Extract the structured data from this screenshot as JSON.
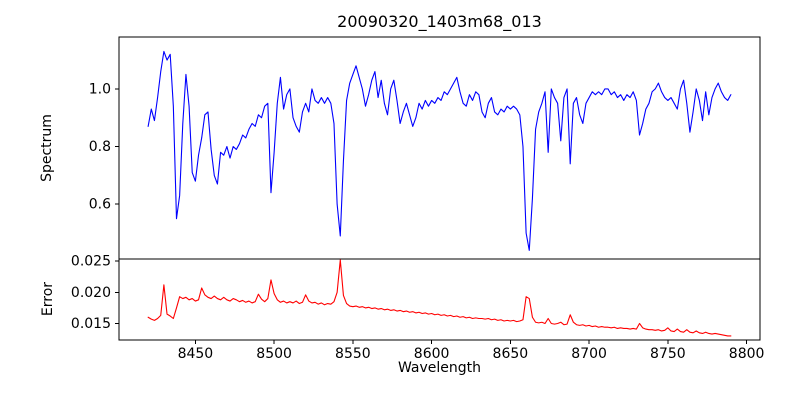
{
  "chart_data": {
    "type": "line",
    "title": "20090320_1403m68_013",
    "xlabel": "Wavelength",
    "xlim": [
      8401.5,
      8808.5
    ],
    "xticks": [
      8450,
      8500,
      8550,
      8600,
      8650,
      8700,
      8750,
      8800
    ],
    "xtick_labels": [
      "8450",
      "8500",
      "8550",
      "8600",
      "8650",
      "8700",
      "8750",
      "8800"
    ],
    "grid": false,
    "legend": "none",
    "x": [
      8420,
      8422,
      8424,
      8426,
      8428,
      8430,
      8432,
      8434,
      8436,
      8438,
      8440,
      8442,
      8444,
      8446,
      8448,
      8450,
      8452,
      8454,
      8456,
      8458,
      8460,
      8462,
      8464,
      8466,
      8468,
      8470,
      8472,
      8474,
      8476,
      8478,
      8480,
      8482,
      8484,
      8486,
      8488,
      8490,
      8492,
      8494,
      8496,
      8498,
      8500,
      8502,
      8504,
      8506,
      8508,
      8510,
      8512,
      8514,
      8516,
      8518,
      8520,
      8522,
      8524,
      8526,
      8528,
      8530,
      8532,
      8534,
      8536,
      8538,
      8540,
      8542,
      8544,
      8546,
      8548,
      8550,
      8552,
      8554,
      8556,
      8558,
      8560,
      8562,
      8564,
      8566,
      8568,
      8570,
      8572,
      8574,
      8576,
      8578,
      8580,
      8582,
      8584,
      8586,
      8588,
      8590,
      8592,
      8594,
      8596,
      8598,
      8600,
      8602,
      8604,
      8606,
      8608,
      8610,
      8612,
      8614,
      8616,
      8618,
      8620,
      8622,
      8624,
      8626,
      8628,
      8630,
      8632,
      8634,
      8636,
      8638,
      8640,
      8642,
      8644,
      8646,
      8648,
      8650,
      8652,
      8654,
      8656,
      8658,
      8660,
      8662,
      8664,
      8666,
      8668,
      8670,
      8672,
      8674,
      8676,
      8678,
      8680,
      8682,
      8684,
      8686,
      8688,
      8690,
      8692,
      8694,
      8696,
      8698,
      8700,
      8702,
      8704,
      8706,
      8708,
      8710,
      8712,
      8714,
      8716,
      8718,
      8720,
      8722,
      8724,
      8726,
      8728,
      8730,
      8732,
      8734,
      8736,
      8738,
      8740,
      8742,
      8744,
      8746,
      8748,
      8750,
      8752,
      8754,
      8756,
      8758,
      8760,
      8762,
      8764,
      8766,
      8768,
      8770,
      8772,
      8774,
      8776,
      8778,
      8780,
      8782,
      8784,
      8786,
      8788,
      8790
    ],
    "panels": [
      {
        "name": "spectrum",
        "ylabel": "Spectrum",
        "color": "#0000ff",
        "ylim": [
          0.41,
          1.18
        ],
        "yticks": [
          0.6,
          0.8,
          1.0
        ],
        "ytick_labels": [
          "0.6",
          "0.8",
          "1.0"
        ],
        "values": [
          0.87,
          0.93,
          0.89,
          0.97,
          1.06,
          1.13,
          1.1,
          1.12,
          0.94,
          0.55,
          0.63,
          0.88,
          1.05,
          0.94,
          0.71,
          0.68,
          0.77,
          0.83,
          0.91,
          0.92,
          0.79,
          0.7,
          0.67,
          0.78,
          0.77,
          0.8,
          0.76,
          0.8,
          0.79,
          0.81,
          0.84,
          0.83,
          0.86,
          0.88,
          0.87,
          0.91,
          0.9,
          0.94,
          0.95,
          0.64,
          0.78,
          0.95,
          1.04,
          0.93,
          0.98,
          1.0,
          0.9,
          0.87,
          0.85,
          0.92,
          0.95,
          0.92,
          1.0,
          0.96,
          0.95,
          0.97,
          0.95,
          0.97,
          0.95,
          0.88,
          0.6,
          0.49,
          0.75,
          0.96,
          1.02,
          1.05,
          1.08,
          1.04,
          1.0,
          0.94,
          0.98,
          1.03,
          1.06,
          0.97,
          1.03,
          0.95,
          0.91,
          1.0,
          1.03,
          0.96,
          0.88,
          0.92,
          0.95,
          0.91,
          0.87,
          0.9,
          0.95,
          0.93,
          0.96,
          0.94,
          0.96,
          0.95,
          0.97,
          0.96,
          0.99,
          0.98,
          1.0,
          1.02,
          1.04,
          0.99,
          0.95,
          0.94,
          0.98,
          0.96,
          0.99,
          0.98,
          0.92,
          0.9,
          0.95,
          0.97,
          0.92,
          0.91,
          0.93,
          0.92,
          0.94,
          0.93,
          0.94,
          0.93,
          0.91,
          0.8,
          0.5,
          0.44,
          0.62,
          0.86,
          0.92,
          0.95,
          0.99,
          0.78,
          1.0,
          0.97,
          0.95,
          0.82,
          0.97,
          1.0,
          0.74,
          0.95,
          0.97,
          0.91,
          0.88,
          0.95,
          0.97,
          0.99,
          0.98,
          0.99,
          0.98,
          1.0,
          1.0,
          0.98,
          0.99,
          0.97,
          0.98,
          0.96,
          0.98,
          0.97,
          0.99,
          0.96,
          0.84,
          0.88,
          0.93,
          0.95,
          0.99,
          1.0,
          1.02,
          0.99,
          0.97,
          0.96,
          0.97,
          0.95,
          0.93,
          1.0,
          1.03,
          0.95,
          0.85,
          0.92,
          1.0,
          0.96,
          0.89,
          0.99,
          0.91,
          0.97,
          1.0,
          1.02,
          0.99,
          0.97,
          0.96,
          0.98
        ]
      },
      {
        "name": "error",
        "ylabel": "Error",
        "color": "#ff0000",
        "ylim": [
          0.01235,
          0.02535
        ],
        "yticks": [
          0.015,
          0.02,
          0.025
        ],
        "ytick_labels": [
          "0.015",
          "0.020",
          "0.025"
        ],
        "values": [
          0.016,
          0.0157,
          0.0155,
          0.0158,
          0.0163,
          0.0212,
          0.0165,
          0.0162,
          0.0158,
          0.0175,
          0.0193,
          0.019,
          0.0192,
          0.0188,
          0.019,
          0.0186,
          0.0188,
          0.0207,
          0.0196,
          0.0192,
          0.019,
          0.0194,
          0.019,
          0.0188,
          0.0192,
          0.0188,
          0.0186,
          0.019,
          0.0188,
          0.0185,
          0.0187,
          0.0184,
          0.0186,
          0.0183,
          0.0185,
          0.0197,
          0.0189,
          0.0185,
          0.019,
          0.022,
          0.0198,
          0.0188,
          0.0184,
          0.0186,
          0.0183,
          0.0185,
          0.0183,
          0.0186,
          0.0182,
          0.0184,
          0.0196,
          0.0186,
          0.0183,
          0.0184,
          0.0181,
          0.0183,
          0.018,
          0.0182,
          0.0181,
          0.0185,
          0.02,
          0.0252,
          0.0195,
          0.0182,
          0.0178,
          0.0177,
          0.0178,
          0.0176,
          0.0177,
          0.0175,
          0.0176,
          0.0174,
          0.0175,
          0.0173,
          0.0174,
          0.0172,
          0.0173,
          0.0171,
          0.0172,
          0.017,
          0.0171,
          0.0169,
          0.017,
          0.0168,
          0.0169,
          0.0167,
          0.0168,
          0.0166,
          0.0167,
          0.0165,
          0.0166,
          0.0164,
          0.0165,
          0.0163,
          0.0164,
          0.0162,
          0.0163,
          0.0161,
          0.0162,
          0.016,
          0.0161,
          0.0159,
          0.016,
          0.0158,
          0.0159,
          0.0158,
          0.0158,
          0.0157,
          0.0158,
          0.0156,
          0.0157,
          0.0155,
          0.0156,
          0.0154,
          0.0155,
          0.0154,
          0.0155,
          0.0153,
          0.0154,
          0.0156,
          0.0193,
          0.019,
          0.016,
          0.0152,
          0.0151,
          0.0152,
          0.015,
          0.0158,
          0.015,
          0.0149,
          0.015,
          0.0152,
          0.0148,
          0.0149,
          0.0164,
          0.0152,
          0.0148,
          0.0147,
          0.0148,
          0.0146,
          0.0147,
          0.0145,
          0.0146,
          0.0144,
          0.0145,
          0.0144,
          0.0144,
          0.0143,
          0.0144,
          0.0142,
          0.0143,
          0.0142,
          0.0142,
          0.0141,
          0.0142,
          0.0141,
          0.015,
          0.0143,
          0.0141,
          0.014,
          0.014,
          0.0139,
          0.014,
          0.0138,
          0.0139,
          0.0143,
          0.0138,
          0.0137,
          0.0141,
          0.0137,
          0.0136,
          0.014,
          0.0136,
          0.0135,
          0.0138,
          0.0135,
          0.0134,
          0.0136,
          0.0134,
          0.0133,
          0.0134,
          0.0133,
          0.0132,
          0.0131,
          0.013,
          0.013
        ]
      }
    ],
    "spine_color": "#000000",
    "background": "#ffffff"
  }
}
